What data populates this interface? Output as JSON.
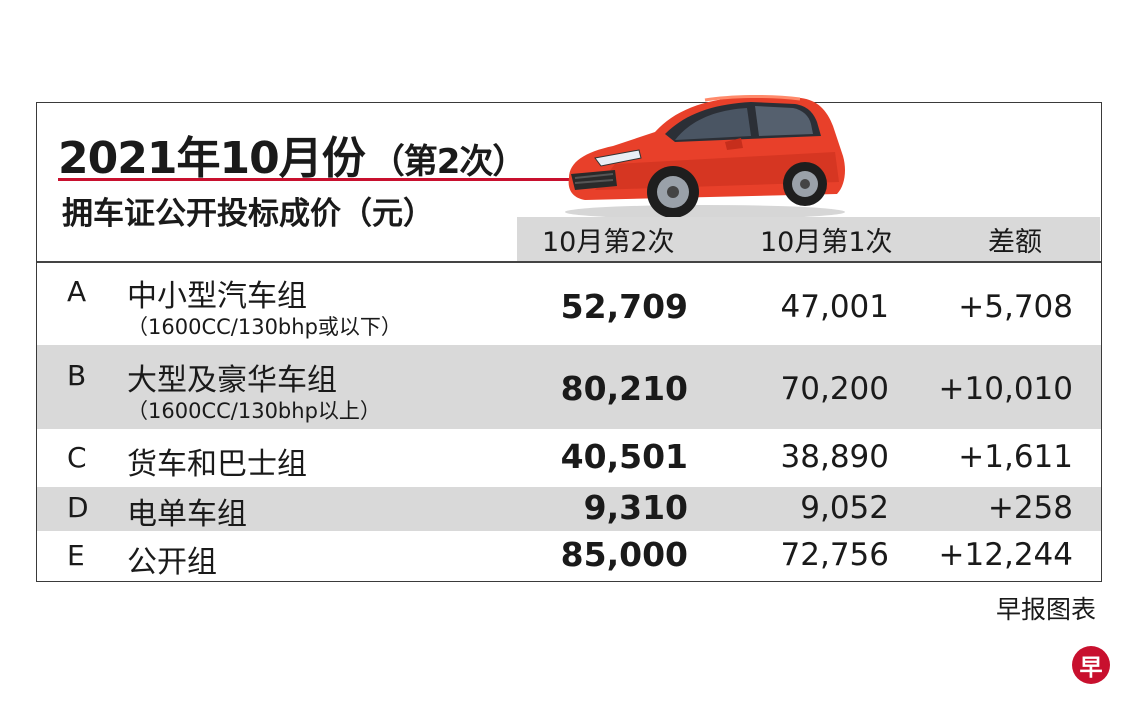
{
  "title": {
    "main": "2021年10月份",
    "paren": "（第2次）",
    "subtitle": "拥车证公开投标成价（元）"
  },
  "columns": {
    "current": "10月第2次",
    "previous": "10月第1次",
    "difference": "差额"
  },
  "rows": [
    {
      "letter": "A",
      "name": "中小型汽车组",
      "spec": "（1600CC/130bhp或以下）",
      "current": "52,709",
      "previous": "47,001",
      "difference": "+5,708"
    },
    {
      "letter": "B",
      "name": "大型及豪华车组",
      "spec": "（1600CC/130bhp以上）",
      "current": "80,210",
      "previous": "70,200",
      "difference": "+10,010"
    },
    {
      "letter": "C",
      "name": "货车和巴士组",
      "spec": "",
      "current": "40,501",
      "previous": "38,890",
      "difference": "+1,611"
    },
    {
      "letter": "D",
      "name": "电单车组",
      "spec": "",
      "current": "9,310",
      "previous": "9,052",
      "difference": "+258"
    },
    {
      "letter": "E",
      "name": "公开组",
      "spec": "",
      "current": "85,000",
      "previous": "72,756",
      "difference": "+12,244"
    }
  ],
  "footer": {
    "credit": "早报图表",
    "logo_char": "早"
  },
  "colors": {
    "accent_red": "#c8102e",
    "row_shade": "#d9d9d9",
    "car_body": "#e8402a"
  },
  "icons": {
    "car": "red-hatchback-car-illustration",
    "logo": "zaobao-logo"
  }
}
